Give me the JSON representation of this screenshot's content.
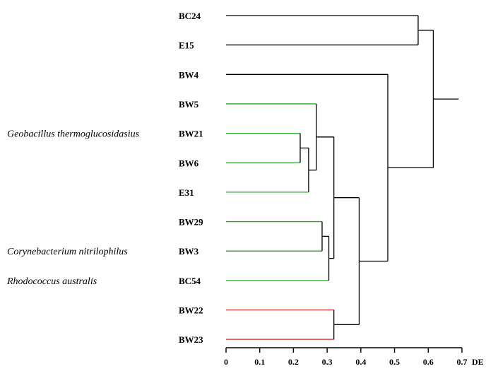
{
  "chart_data": {
    "type": "dendrogram",
    "axis": {
      "unit_label": "DE",
      "min": 0,
      "max": 0.7,
      "ticks": [
        0,
        0.1,
        0.2,
        0.3,
        0.4,
        0.5,
        0.6,
        0.7
      ],
      "tick_labels": [
        "0",
        "0.1",
        "0.2",
        "0.3",
        "0.4",
        "0.5",
        "0.6",
        "0.7"
      ]
    },
    "leaves": [
      {
        "label": "BC24",
        "color": "#000000"
      },
      {
        "label": "E15",
        "color": "#000000"
      },
      {
        "label": "BW4",
        "color": "#000000"
      },
      {
        "label": "BW5",
        "color": "#2ca02c"
      },
      {
        "label": "BW21",
        "color": "#2ca02c"
      },
      {
        "label": "BW6",
        "color": "#2ca02c"
      },
      {
        "label": "E31",
        "color": "#2ca02c"
      },
      {
        "label": "BW29",
        "color": "#2ca02c"
      },
      {
        "label": "BW3",
        "color": "#2ca02c"
      },
      {
        "label": "BC54",
        "color": "#2ca02c"
      },
      {
        "label": "BW22",
        "color": "#d62728"
      },
      {
        "label": "BW23",
        "color": "#d62728"
      }
    ],
    "merges": [
      {
        "id": "m1",
        "children": [
          "BW21",
          "BW6"
        ],
        "height": 0.22
      },
      {
        "id": "m2",
        "children": [
          "m1",
          "E31"
        ],
        "height": 0.245
      },
      {
        "id": "m3",
        "children": [
          "BW5",
          "m2"
        ],
        "height": 0.268
      },
      {
        "id": "m4",
        "children": [
          "BW29",
          "BW3"
        ],
        "height": 0.285
      },
      {
        "id": "m5",
        "children": [
          "m4",
          "BC54"
        ],
        "height": 0.305
      },
      {
        "id": "m6",
        "children": [
          "m3",
          "m5"
        ],
        "height": 0.32
      },
      {
        "id": "m7",
        "children": [
          "BW22",
          "BW23"
        ],
        "height": 0.32
      },
      {
        "id": "m8",
        "children": [
          "m6",
          "m7"
        ],
        "height": 0.395
      },
      {
        "id": "m9",
        "children": [
          "BW4",
          "m8"
        ],
        "height": 0.48
      },
      {
        "id": "m10",
        "children": [
          "BC24",
          "E15"
        ],
        "height": 0.57
      },
      {
        "id": "m11",
        "children": [
          "m10",
          "m9"
        ],
        "height": 0.615
      },
      {
        "id": "root",
        "children": [
          "m11"
        ],
        "height": 0.69
      }
    ],
    "annotations": [
      {
        "text": "Geobacillus thermoglucosidasius",
        "leaf": "BW21"
      },
      {
        "text": "Corynebacterium nitrilophilus",
        "leaf": "BW3"
      },
      {
        "text": "Rhodococcus australis",
        "leaf": "BC54"
      }
    ]
  }
}
